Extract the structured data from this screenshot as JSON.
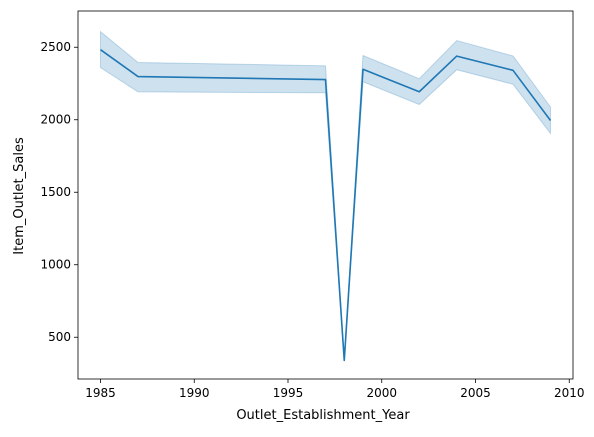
{
  "chart_data": {
    "type": "line",
    "title": "",
    "xlabel": "Outlet_Establishment_Year",
    "ylabel": "Item_Outlet_Sales",
    "xlim": [
      1983.8,
      2010.2
    ],
    "ylim": [
      212,
      2750
    ],
    "xticks": [
      1985,
      1990,
      1995,
      2000,
      2005,
      2010
    ],
    "yticks": [
      500,
      1000,
      1500,
      2000,
      2500
    ],
    "grid": false,
    "legend": "none",
    "series": [
      {
        "x": [
          1985,
          1987,
          1997,
          1998,
          1999,
          2002,
          2004,
          2007,
          2009
        ],
        "y": [
          2483,
          2298,
          2277,
          340,
          2348,
          2193,
          2439,
          2341,
          1995
        ],
        "ci_lower": [
          2360,
          2192,
          2186,
          340,
          2262,
          2105,
          2345,
          2245,
          1905
        ],
        "ci_upper": [
          2608,
          2395,
          2372,
          340,
          2443,
          2283,
          2546,
          2440,
          2088
        ],
        "color": "#1f77b4"
      }
    ]
  }
}
